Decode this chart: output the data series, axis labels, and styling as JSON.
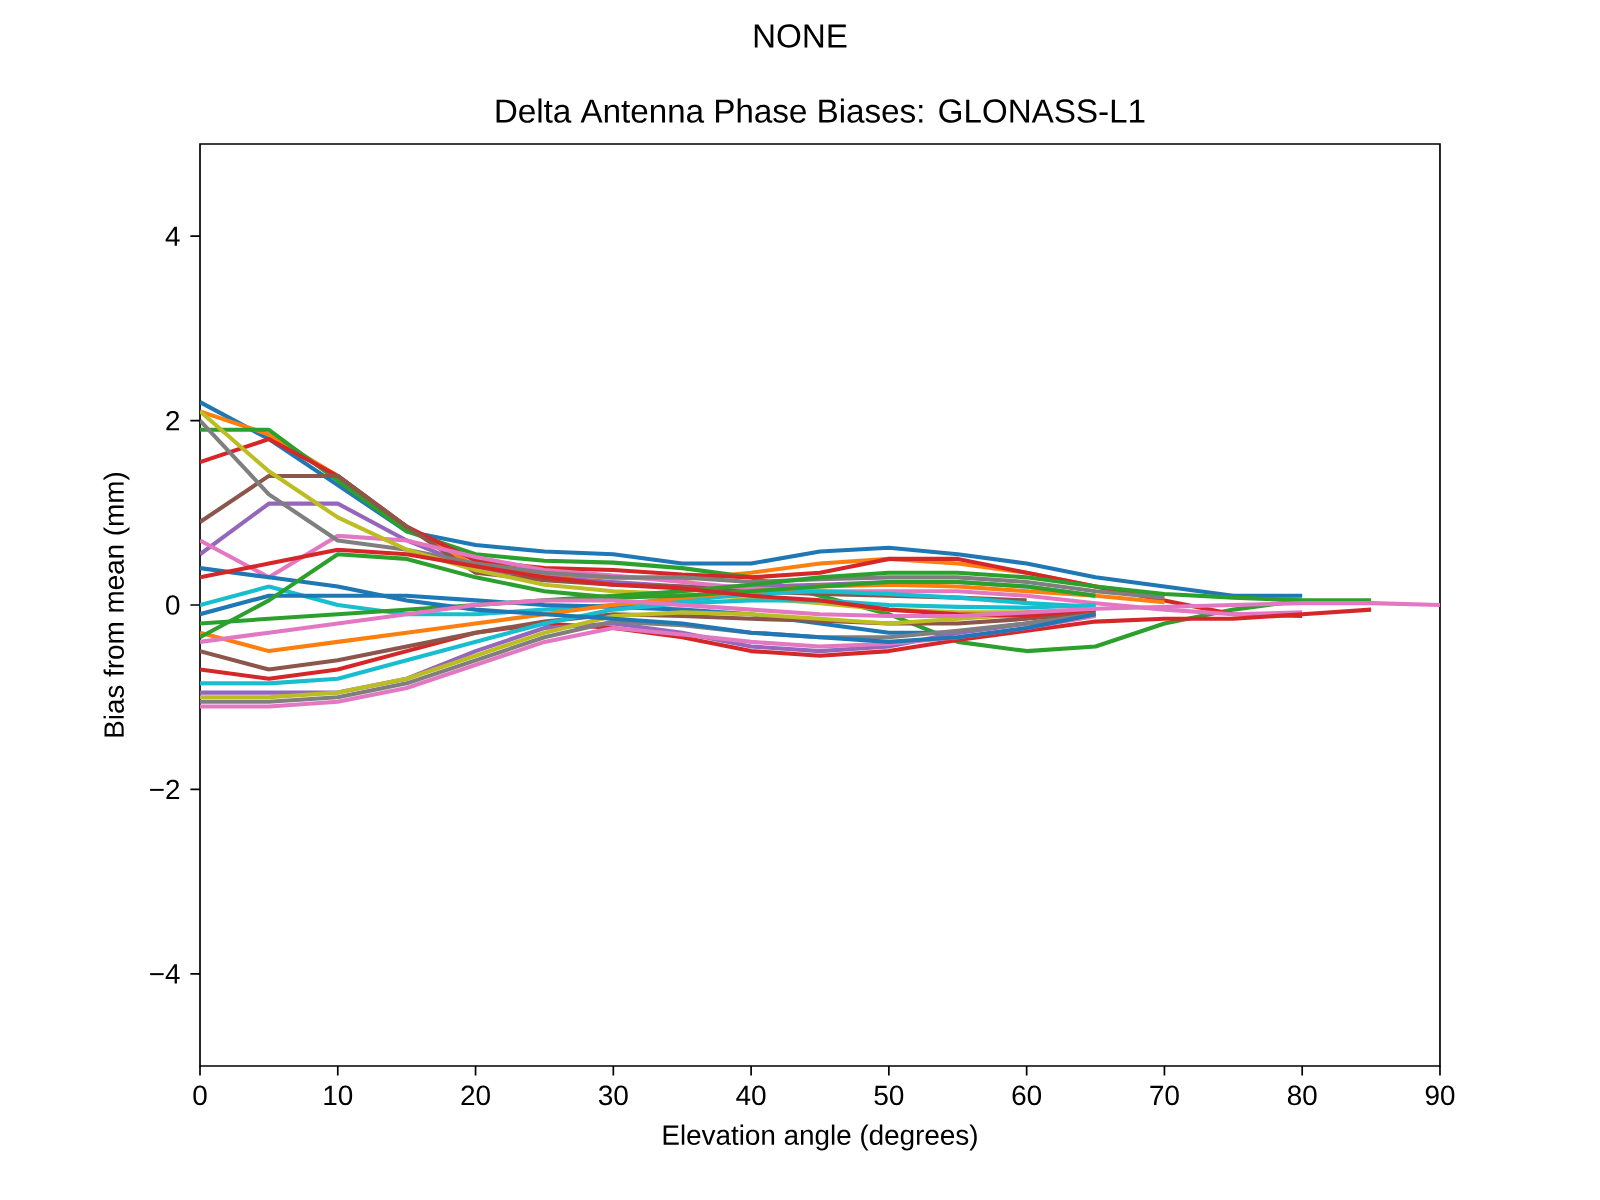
{
  "chart_data": {
    "type": "line",
    "title": "NONE",
    "subtitle": "Delta Antenna Phase Biases: GLONASS-L1",
    "xlabel": "Elevation angle (degrees)",
    "ylabel": "Bias from mean (mm)",
    "x": [
      0,
      5,
      10,
      15,
      20,
      25,
      30,
      35,
      40,
      45,
      50,
      55,
      60,
      65,
      70,
      75,
      80,
      85,
      90
    ],
    "xlim": [
      0,
      90
    ],
    "xticks": [
      0,
      10,
      20,
      30,
      40,
      50,
      60,
      70,
      80,
      90
    ],
    "ylim": [
      -5,
      5
    ],
    "yticks": [
      {
        "value": -4,
        "label": "−4"
      },
      {
        "value": -2,
        "label": "−2"
      },
      0,
      2,
      4
    ],
    "series": [
      {
        "color": "#1f77b4",
        "values": [
          2.2,
          1.8,
          1.3,
          0.8,
          0.65,
          0.58,
          0.55,
          0.45,
          0.45,
          0.58,
          0.62,
          0.55,
          0.45,
          0.3,
          0.2,
          0.1,
          0.1,
          null,
          null
        ]
      },
      {
        "color": "#ff7f0e",
        "values": [
          2.1,
          1.85,
          1.4,
          0.85,
          0.42,
          0.33,
          0.3,
          0.28,
          0.35,
          0.45,
          0.5,
          0.45,
          0.35,
          0.2,
          0.1,
          null,
          null,
          null,
          null
        ]
      },
      {
        "color": "#2ca02c",
        "values": [
          1.9,
          1.9,
          1.35,
          0.8,
          0.55,
          0.48,
          0.46,
          0.4,
          0.3,
          0.1,
          -0.1,
          -0.4,
          -0.5,
          -0.45,
          -0.2,
          -0.05,
          0.05,
          0.05,
          null
        ]
      },
      {
        "color": "#d62728",
        "values": [
          1.55,
          1.8,
          1.4,
          0.85,
          0.48,
          0.4,
          0.38,
          0.33,
          0.3,
          0.35,
          0.5,
          0.5,
          0.35,
          0.2,
          0.05,
          -0.1,
          -0.12,
          null,
          null
        ]
      },
      {
        "color": "#9467bd",
        "values": [
          0.55,
          1.1,
          1.1,
          0.7,
          0.4,
          0.3,
          0.25,
          0.2,
          0.2,
          0.22,
          0.25,
          0.25,
          0.2,
          0.1,
          null,
          null,
          null,
          null,
          null
        ]
      },
      {
        "color": "#8c564b",
        "values": [
          0.9,
          1.4,
          1.4,
          0.85,
          0.35,
          0.27,
          0.22,
          0.2,
          0.15,
          0.12,
          0.1,
          0.08,
          0.05,
          null,
          null,
          null,
          null,
          null,
          null
        ]
      },
      {
        "color": "#e377c2",
        "values": [
          0.7,
          0.3,
          0.75,
          0.7,
          0.52,
          0.38,
          0.32,
          0.25,
          0.18,
          0.15,
          0.15,
          0.15,
          0.1,
          0.02,
          -0.05,
          -0.1,
          -0.08,
          null,
          null
        ]
      },
      {
        "color": "#7f7f7f",
        "values": [
          2.0,
          1.2,
          0.7,
          0.6,
          0.45,
          0.35,
          0.3,
          0.3,
          0.25,
          0.28,
          0.3,
          0.3,
          0.25,
          0.15,
          0.08,
          null,
          null,
          null,
          null
        ]
      },
      {
        "color": "#bcbd22",
        "values": [
          2.1,
          1.45,
          0.95,
          0.6,
          0.38,
          0.22,
          0.15,
          0.12,
          0.08,
          0.02,
          -0.05,
          -0.08,
          -0.08,
          -0.05,
          null,
          null,
          null,
          null,
          null
        ]
      },
      {
        "color": "#17becf",
        "values": [
          0,
          0.2,
          0,
          -0.1,
          -0.1,
          -0.05,
          0,
          0.05,
          0.12,
          0.15,
          0.12,
          0.08,
          0.02,
          -0.02,
          null,
          null,
          null,
          null,
          null
        ]
      },
      {
        "color": "#1f77b4",
        "values": [
          -0.1,
          0.1,
          0.1,
          0.1,
          0.05,
          0,
          -0.02,
          -0.05,
          -0.1,
          -0.2,
          -0.3,
          -0.3,
          -0.2,
          -0.1,
          null,
          null,
          null,
          null,
          null
        ]
      },
      {
        "color": "#ff7f0e",
        "values": [
          -0.3,
          -0.5,
          -0.4,
          -0.3,
          -0.2,
          -0.1,
          0,
          0.08,
          0.15,
          0.2,
          0.22,
          0.2,
          0.15,
          0.1,
          0.03,
          null,
          null,
          null,
          null
        ]
      },
      {
        "color": "#2ca02c",
        "values": [
          -0.2,
          -0.15,
          -0.1,
          -0.05,
          0,
          0.05,
          0.1,
          0.15,
          0.22,
          0.3,
          0.35,
          0.35,
          0.3,
          0.2,
          0.12,
          0.08,
          0.05,
          null,
          null
        ]
      },
      {
        "color": "#d62728",
        "values": [
          -0.7,
          -0.8,
          -0.7,
          -0.5,
          -0.3,
          -0.2,
          -0.25,
          -0.35,
          -0.5,
          -0.55,
          -0.5,
          -0.38,
          -0.28,
          -0.18,
          -0.15,
          -0.15,
          -0.1,
          -0.05,
          null
        ]
      },
      {
        "color": "#9467bd",
        "values": [
          -0.95,
          -0.95,
          -0.95,
          -0.8,
          -0.5,
          -0.25,
          -0.2,
          -0.3,
          -0.45,
          -0.5,
          -0.45,
          -0.3,
          -0.2,
          -0.1,
          null,
          null,
          null,
          null,
          null
        ]
      },
      {
        "color": "#8c564b",
        "values": [
          -0.5,
          -0.7,
          -0.6,
          -0.45,
          -0.3,
          -0.18,
          -0.1,
          -0.12,
          -0.15,
          -0.17,
          -0.2,
          -0.2,
          -0.15,
          -0.08,
          null,
          null,
          null,
          null,
          null
        ]
      },
      {
        "color": "#e377c2",
        "values": [
          -1.1,
          -1.1,
          -1.05,
          -0.9,
          -0.65,
          -0.4,
          -0.25,
          -0.32,
          -0.4,
          -0.45,
          -0.42,
          -0.35,
          -0.25,
          -0.12,
          null,
          null,
          null,
          null,
          null
        ]
      },
      {
        "color": "#7f7f7f",
        "values": [
          -1.05,
          -1.05,
          -1.0,
          -0.85,
          -0.6,
          -0.35,
          -0.18,
          -0.22,
          -0.3,
          -0.35,
          -0.35,
          -0.28,
          -0.2,
          -0.1,
          null,
          null,
          null,
          null,
          null
        ]
      },
      {
        "color": "#bcbd22",
        "values": [
          -1.0,
          -1.0,
          -0.95,
          -0.8,
          -0.55,
          -0.3,
          -0.12,
          -0.08,
          -0.1,
          -0.15,
          -0.2,
          -0.15,
          -0.1,
          -0.05,
          null,
          null,
          null,
          null,
          null
        ]
      },
      {
        "color": "#17becf",
        "values": [
          -0.85,
          -0.85,
          -0.8,
          -0.6,
          -0.4,
          -0.2,
          -0.05,
          0.02,
          0.05,
          0.05,
          0,
          -0.02,
          -0.03,
          0,
          null,
          null,
          null,
          null,
          null
        ]
      },
      {
        "color": "#1f77b4",
        "values": [
          0.4,
          0.3,
          0.2,
          0.05,
          -0.05,
          -0.1,
          -0.15,
          -0.2,
          -0.3,
          -0.35,
          -0.4,
          -0.35,
          -0.25,
          -0.1,
          null,
          null,
          null,
          null,
          null
        ]
      },
      {
        "color": "#2ca02c",
        "values": [
          -0.35,
          0.05,
          0.55,
          0.5,
          0.3,
          0.15,
          0.08,
          0.1,
          0.15,
          0.2,
          0.25,
          0.25,
          0.2,
          0.1,
          null,
          null,
          null,
          null,
          null
        ]
      },
      {
        "color": "#d62728",
        "values": [
          0.3,
          0.45,
          0.6,
          0.55,
          0.42,
          0.3,
          0.22,
          0.18,
          0.1,
          0.05,
          -0.05,
          -0.1,
          -0.12,
          -0.05,
          null,
          null,
          null,
          null,
          null
        ]
      },
      {
        "color": "#e377c2",
        "values": [
          -0.4,
          -0.3,
          -0.2,
          -0.1,
          0,
          0.05,
          0.05,
          0,
          -0.05,
          -0.1,
          -0.12,
          -0.12,
          -0.08,
          -0.04,
          -0.02,
          0,
          0.02,
          0.02,
          0
        ]
      }
    ]
  }
}
